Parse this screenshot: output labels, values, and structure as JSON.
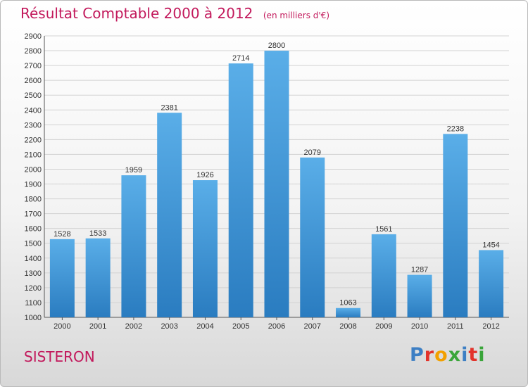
{
  "header": {
    "title": "Résultat Comptable 2000 à 2012",
    "subtitle": "(en milliers d'€)"
  },
  "footer": {
    "city": "SISTERON",
    "logo_letters": [
      {
        "ch": "P",
        "color": "#3d7fc4"
      },
      {
        "ch": "r",
        "color": "#e2332b"
      },
      {
        "ch": "o",
        "color": "#f2a000"
      },
      {
        "ch": "x",
        "color": "#3aa53a"
      },
      {
        "ch": "i",
        "color": "#3d7fc4"
      },
      {
        "ch": "t",
        "color": "#e2332b"
      },
      {
        "ch": "i",
        "color": "#3aa53a"
      }
    ]
  },
  "chart_data": {
    "type": "bar",
    "title": "Résultat Comptable 2000 à 2012",
    "subtitle": "(en milliers d'€)",
    "xlabel": "",
    "ylabel": "",
    "categories": [
      "2000",
      "2001",
      "2002",
      "2003",
      "2004",
      "2005",
      "2006",
      "2007",
      "2008",
      "2009",
      "2010",
      "2011",
      "2012"
    ],
    "values": [
      1528,
      1533,
      1959,
      2381,
      1926,
      2714,
      2800,
      2079,
      1063,
      1561,
      1287,
      2238,
      1454
    ],
    "ylim": [
      1000,
      2900
    ],
    "yticks": [
      1000,
      1100,
      1200,
      1300,
      1400,
      1500,
      1600,
      1700,
      1800,
      1900,
      2000,
      2100,
      2200,
      2300,
      2400,
      2500,
      2600,
      2700,
      2800,
      2900
    ],
    "grid": true,
    "bar_color": "#4a9fe0",
    "bar_color_dark": "#2a7cc0"
  }
}
